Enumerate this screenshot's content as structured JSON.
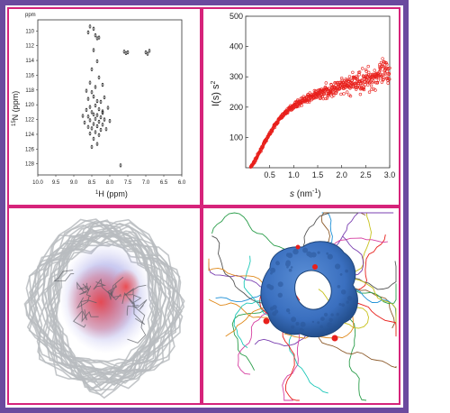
{
  "colors": {
    "outer_frame": "#6b4a9e",
    "panel_border": "#d6237a",
    "nmr_peaks": "#222222",
    "saxs_points": "#e8201c",
    "ribbon_gray": "#b9bcbf",
    "density_blue": "#6f6fd6",
    "density_red": "#f03a3a",
    "surface_blue": "#3a6fbf"
  },
  "panels": {
    "nmr": {
      "ppm_label": "ppm",
      "y_title": "15N (ppm)",
      "y_title_super": "15",
      "y_title_rest": "N (ppm)",
      "x_title_super": "1",
      "x_title_rest": "H (ppm)",
      "y_ticks": [
        "110",
        "112",
        "114",
        "116",
        "118",
        "120",
        "122",
        "124",
        "126",
        "128"
      ],
      "x_ticks": [
        "10.0",
        "9.5",
        "9.0",
        "8.5",
        "8.0",
        "7.5",
        "7.0",
        "6.5",
        "6.0"
      ]
    },
    "saxs": {
      "y_title_main": "I(s) s",
      "y_title_super": "2",
      "x_title_italic": "s",
      "x_title_unit": " (nm",
      "x_title_super": "-1",
      "x_title_close": ")",
      "y_ticks": [
        "500",
        "400",
        "300",
        "200",
        "100"
      ],
      "x_ticks": [
        "0.5",
        "1.0",
        "1.5",
        "2.0",
        "2.5",
        "3.0"
      ]
    },
    "ensemble_ribbon": {
      "icon": "protein-ensemble-ribbon"
    },
    "surface_complex": {
      "icon": "protein-surface-with-disordered-tails"
    }
  },
  "chart_data": [
    {
      "type": "scatter",
      "title": "",
      "xlabel": "1H (ppm)",
      "ylabel": "15N (ppm)",
      "xlim": [
        10.0,
        6.0
      ],
      "ylim": [
        108.5,
        129.5
      ],
      "x_reversed": true,
      "y_reversed": true,
      "grid": false,
      "points": [
        [
          8.55,
          109.4
        ],
        [
          8.45,
          109.7
        ],
        [
          8.4,
          110.6
        ],
        [
          8.35,
          111.0
        ],
        [
          8.6,
          110.2
        ],
        [
          8.3,
          110.9
        ],
        [
          7.6,
          112.8
        ],
        [
          7.55,
          113.0
        ],
        [
          7.5,
          112.9
        ],
        [
          7.0,
          112.9
        ],
        [
          6.95,
          113.1
        ],
        [
          6.9,
          112.7
        ],
        [
          8.45,
          112.6
        ],
        [
          8.35,
          114.1
        ],
        [
          8.5,
          115.2
        ],
        [
          8.3,
          116.3
        ],
        [
          8.55,
          117.0
        ],
        [
          8.4,
          117.6
        ],
        [
          8.2,
          117.3
        ],
        [
          8.5,
          118.3
        ],
        [
          8.45,
          118.9
        ],
        [
          8.6,
          119.2
        ],
        [
          8.35,
          119.5
        ],
        [
          8.25,
          119.6
        ],
        [
          8.4,
          120.1
        ],
        [
          8.55,
          120.3
        ],
        [
          8.3,
          120.6
        ],
        [
          8.65,
          120.7
        ],
        [
          8.2,
          120.9
        ],
        [
          8.5,
          121.0
        ],
        [
          8.45,
          121.3
        ],
        [
          8.35,
          121.4
        ],
        [
          8.6,
          121.6
        ],
        [
          8.25,
          121.7
        ],
        [
          8.4,
          121.9
        ],
        [
          8.15,
          122.0
        ],
        [
          8.55,
          122.1
        ],
        [
          8.3,
          122.3
        ],
        [
          8.7,
          122.4
        ],
        [
          8.45,
          122.6
        ],
        [
          8.2,
          122.7
        ],
        [
          8.35,
          122.9
        ],
        [
          8.6,
          123.0
        ],
        [
          8.5,
          123.2
        ],
        [
          8.25,
          123.4
        ],
        [
          8.1,
          123.3
        ],
        [
          8.4,
          123.7
        ],
        [
          8.55,
          123.9
        ],
        [
          8.3,
          124.1
        ],
        [
          8.45,
          124.6
        ],
        [
          8.35,
          125.3
        ],
        [
          8.5,
          125.7
        ],
        [
          8.2,
          121.1
        ],
        [
          8.05,
          120.4
        ],
        [
          8.75,
          121.5
        ],
        [
          8.0,
          122.2
        ],
        [
          8.65,
          118.1
        ],
        [
          8.15,
          119.0
        ],
        [
          7.7,
          128.2
        ]
      ]
    },
    {
      "type": "scatter",
      "title": "",
      "xlabel": "s (nm-1)",
      "ylabel": "I(s) s2",
      "xlim": [
        0.0,
        3.0
      ],
      "ylim": [
        0,
        500
      ],
      "grid": false,
      "trend": {
        "x": [
          0.1,
          0.2,
          0.3,
          0.4,
          0.5,
          0.6,
          0.7,
          0.8,
          0.9,
          1.0,
          1.2,
          1.4,
          1.6,
          1.8,
          2.0,
          2.2,
          2.4,
          2.6,
          2.8,
          3.0
        ],
        "y": [
          0,
          25,
          55,
          85,
          112,
          138,
          160,
          178,
          192,
          205,
          222,
          236,
          248,
          258,
          266,
          276,
          286,
          296,
          306,
          318
        ]
      },
      "scatter_spread_at_x": {
        "x": [
          0.5,
          1.0,
          1.5,
          2.0,
          2.5,
          3.0
        ],
        "y": [
          8,
          15,
          30,
          50,
          70,
          90
        ]
      }
    }
  ]
}
